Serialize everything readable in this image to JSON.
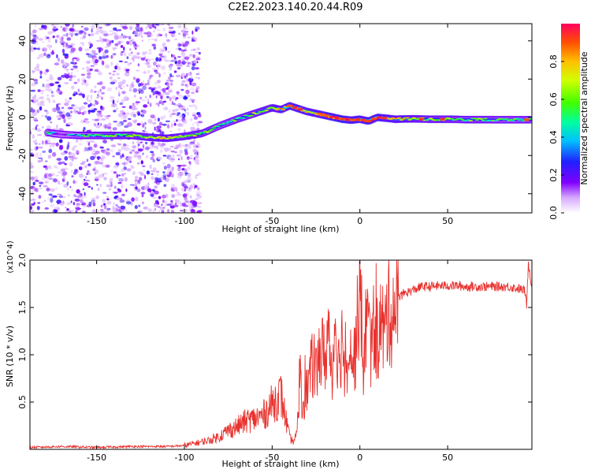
{
  "title": "C2E2.2023.140.20.44.R09",
  "chart_data": [
    {
      "type": "heatmap",
      "title": "C2E2.2023.140.20.44.R09",
      "xlabel": "Height of straight line (km)",
      "ylabel": "Frequency (Hz)",
      "xlim": [
        -188,
        98
      ],
      "ylim": [
        -50,
        49
      ],
      "xticks": [
        -150,
        -100,
        -50,
        0,
        50
      ],
      "yticks": [
        -40,
        -20,
        0,
        20,
        40
      ],
      "colorbar": {
        "label": "Normalized spectral amplitude",
        "range": [
          0,
          1
        ],
        "ticks": [
          0.0,
          0.2,
          0.4,
          0.6,
          0.8
        ],
        "tick_labels": [
          "0.0",
          "0.2",
          "0.4",
          "0.6",
          "0.8"
        ]
      },
      "ridge": {
        "x": [
          -178,
          -170,
          -160,
          -150,
          -140,
          -130,
          -120,
          -110,
          -100,
          -90,
          -80,
          -70,
          -60,
          -55,
          -50,
          -45,
          -40,
          -35,
          -30,
          -25,
          -20,
          -15,
          -10,
          -5,
          0,
          5,
          10,
          20,
          30,
          40,
          50,
          60,
          70,
          80,
          90,
          97
        ],
        "y": [
          -8,
          -9,
          -9.5,
          -9.5,
          -9.5,
          -9.5,
          -10.5,
          -11,
          -10,
          -8.5,
          -4.5,
          -1,
          2,
          3.5,
          5,
          4,
          6,
          4.5,
          3,
          2,
          1,
          0,
          -1,
          -1.5,
          -1,
          -2,
          0,
          -1,
          -0.8,
          -1,
          -1,
          -1.2,
          -1.2,
          -1.3,
          -1.3,
          -1.3
        ],
        "amplitude": [
          0.45,
          0.3,
          0.45,
          0.55,
          0.6,
          0.6,
          0.65,
          0.7,
          0.65,
          0.6,
          0.5,
          0.55,
          0.6,
          0.65,
          0.7,
          0.8,
          0.85,
          0.9,
          0.8,
          0.75,
          0.9,
          0.95,
          0.95,
          0.9,
          0.85,
          0.9,
          0.9,
          0.75,
          0.7,
          0.6,
          0.6,
          0.55,
          0.55,
          0.5,
          0.5,
          0.55
        ]
      }
    },
    {
      "type": "line",
      "xlabel": "Height of straight line (km)",
      "ylabel": "SNR (10 * v/v)",
      "y_multiplier": "(x10^4)",
      "xlim": [
        -188,
        98
      ],
      "ylim": [
        0,
        2.0
      ],
      "xticks": [
        -150,
        -100,
        -50,
        0,
        50
      ],
      "yticks": [
        0.5,
        1.0,
        1.5,
        2.0
      ],
      "ytick_labels": [
        "0.5",
        "1.0",
        "1.5",
        "2.0"
      ],
      "series": [
        {
          "name": "SNR",
          "color": "#e8322e",
          "x": [
            -188,
            -170,
            -150,
            -130,
            -110,
            -100,
            -95,
            -90,
            -85,
            -80,
            -75,
            -70,
            -65,
            -60,
            -55,
            -50,
            -45,
            -42,
            -40,
            -38,
            -36,
            -35,
            -34,
            -33,
            -30,
            -27,
            -25,
            -22,
            -20,
            -18,
            -16,
            -14,
            -12,
            -10,
            -8,
            -6,
            -4,
            -2,
            0,
            2,
            4,
            6,
            8,
            10,
            12,
            14,
            16,
            18,
            20,
            22,
            25,
            30,
            35,
            40,
            45,
            50,
            55,
            60,
            65,
            70,
            75,
            80,
            85,
            90,
            94,
            95,
            96,
            98
          ],
          "y": [
            0.02,
            0.03,
            0.02,
            0.03,
            0.03,
            0.04,
            0.06,
            0.08,
            0.1,
            0.14,
            0.2,
            0.24,
            0.3,
            0.32,
            0.36,
            0.48,
            0.58,
            0.3,
            0.12,
            0.08,
            0.15,
            0.4,
            1.0,
            0.45,
            0.65,
            0.9,
            0.8,
            1.05,
            0.95,
            1.25,
            0.8,
            1.4,
            0.9,
            1.2,
            0.75,
            1.35,
            0.85,
            1.15,
            1.75,
            0.9,
            1.45,
            1.05,
            1.3,
            1.15,
            1.35,
            1.2,
            1.5,
            1.45,
            1.5,
            1.6,
            1.65,
            1.68,
            1.72,
            1.72,
            1.73,
            1.73,
            1.73,
            1.72,
            1.72,
            1.72,
            1.72,
            1.72,
            1.72,
            1.7,
            1.68,
            1.5,
            1.98,
            1.72
          ]
        }
      ]
    }
  ]
}
